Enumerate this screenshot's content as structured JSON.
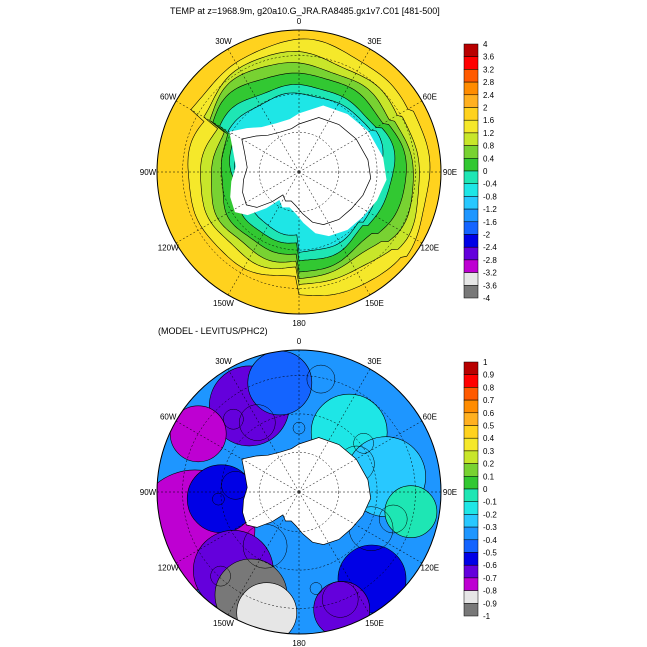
{
  "chart_data": [
    {
      "type": "heatmap",
      "projection": "polar-stereographic-south",
      "title": "TEMP at z=1968.9m, g20a10.G_JRA.RA8485.gx1v7.C01 [481-500]",
      "longitude_labels": [
        "0",
        "30E",
        "60E",
        "90E",
        "120E",
        "150E",
        "180",
        "150W",
        "120W",
        "90W",
        "60W",
        "30W"
      ],
      "colorbar_levels": [
        "4",
        "3.6",
        "3.2",
        "2.8",
        "2.4",
        "2",
        "1.6",
        "1.2",
        "0.8",
        "0.4",
        "0",
        "-0.4",
        "-0.8",
        "-1.2",
        "-1.6",
        "-2",
        "-2.4",
        "-2.8",
        "-3.2",
        "-3.6",
        "-4"
      ],
      "colorbar_colors": [
        "#b80000",
        "#ff0000",
        "#ff5a00",
        "#ff8c00",
        "#ffb020",
        "#ffd21e",
        "#f5e82a",
        "#c8e62a",
        "#78d232",
        "#32c832",
        "#1ee6b4",
        "#1ee6e6",
        "#28c8ff",
        "#1e96ff",
        "#1464ff",
        "#0000e6",
        "#6400dc",
        "#be00d2",
        "#e6e6e6",
        "#787878"
      ],
      "rings": [
        {
          "value": 0.7,
          "color_index": 9
        },
        {
          "value": 1.0,
          "color_index": 8
        },
        {
          "value": 1.25,
          "color_index": 7
        }
      ],
      "field": {
        "inner_value": -0.2,
        "outer_value": 1.3,
        "pacific_value": 1.3
      }
    },
    {
      "type": "heatmap",
      "projection": "polar-stereographic-south",
      "title": "(MODEL - LEVITUS/PHC2)",
      "longitude_labels": [
        "0",
        "30E",
        "60E",
        "90E",
        "120E",
        "150E",
        "180",
        "150W",
        "120W",
        "90W",
        "60W",
        "30W"
      ],
      "colorbar_levels": [
        "1",
        "0.9",
        "0.8",
        "0.7",
        "0.6",
        "0.5",
        "0.4",
        "0.3",
        "0.2",
        "0.1",
        "0",
        "-0.1",
        "-0.2",
        "-0.3",
        "-0.4",
        "-0.5",
        "-0.6",
        "-0.7",
        "-0.8",
        "-0.9",
        "-1"
      ],
      "colorbar_colors": [
        "#b80000",
        "#ff0000",
        "#ff5a00",
        "#ff8c00",
        "#ffb020",
        "#ffd21e",
        "#f5e82a",
        "#c8e62a",
        "#78d232",
        "#32c832",
        "#1ee6b4",
        "#1ee6e6",
        "#28c8ff",
        "#1e96ff",
        "#1464ff",
        "#0000e6",
        "#6400dc",
        "#be00d2",
        "#e6e6e6",
        "#787878"
      ],
      "field": {
        "atlantic_value": -0.35,
        "indian_value": -0.2,
        "pacific_value": -0.65,
        "east_pacific_value": -0.85
      }
    }
  ],
  "colors": {
    "land": "#ffffff",
    "missing": "#ffffff",
    "contour": "#000000"
  }
}
